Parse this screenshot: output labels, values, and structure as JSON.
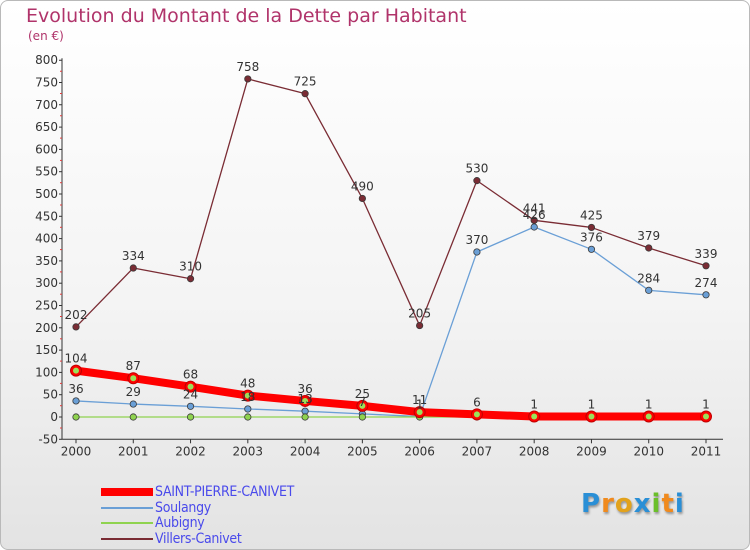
{
  "chart_data": {
    "type": "line",
    "title": "Evolution du Montant de la Dette par Habitant",
    "subtitle": "(en €)",
    "x": [
      "2000",
      "2001",
      "2002",
      "2003",
      "2004",
      "2005",
      "2006",
      "2007",
      "2008",
      "2009",
      "2010",
      "2011"
    ],
    "ylim": [
      -50,
      800
    ],
    "yticks": [
      "-50",
      "0",
      "50",
      "100",
      "150",
      "200",
      "250",
      "300",
      "350",
      "400",
      "450",
      "500",
      "550",
      "600",
      "650",
      "700",
      "750",
      "800"
    ],
    "grid": false,
    "legend_position": "bottom-left",
    "series": [
      {
        "name": "SAINT-PIERRE-CANIVET",
        "color": "#ff0000",
        "values": [
          104,
          87,
          68,
          48,
          36,
          25,
          11,
          6,
          1,
          1,
          1,
          1
        ],
        "labels": [
          "104",
          "87",
          "68",
          "48",
          "36",
          "25",
          "11",
          "6",
          "1",
          "1",
          "1",
          "1"
        ]
      },
      {
        "name": "Soulangy",
        "color": "#6a9fd6",
        "values": [
          36,
          29,
          24,
          18,
          13,
          7,
          1,
          370,
          426,
          376,
          284,
          274
        ],
        "labels": [
          "36",
          "29",
          "24",
          "18",
          "13",
          "7",
          "1",
          "370",
          "426",
          "376",
          "284",
          "274"
        ]
      },
      {
        "name": "Aubigny",
        "color": "#8fd34f",
        "values": [
          0,
          0,
          0,
          0,
          0,
          0,
          0,
          0,
          0,
          0,
          0,
          0
        ],
        "labels": [
          "0",
          "0",
          "0",
          "0",
          "0",
          "0",
          "0",
          "0",
          "0",
          "0",
          "0",
          "0"
        ]
      },
      {
        "name": "Villers-Canivet",
        "color": "#7a2c34",
        "values": [
          202,
          334,
          310,
          758,
          725,
          490,
          205,
          530,
          441,
          425,
          379,
          339
        ],
        "labels": [
          "202",
          "334",
          "310",
          "758",
          "725",
          "490",
          "205",
          "530",
          "441",
          "425",
          "379",
          "339"
        ]
      }
    ]
  },
  "brand": {
    "text": "Proxiti",
    "letter_colors": [
      "#2a8fd6",
      "#f08a1d",
      "#e2a21c",
      "#2a8fd6",
      "#6bbf2a",
      "#f08a1d",
      "#2a8fd6"
    ]
  }
}
